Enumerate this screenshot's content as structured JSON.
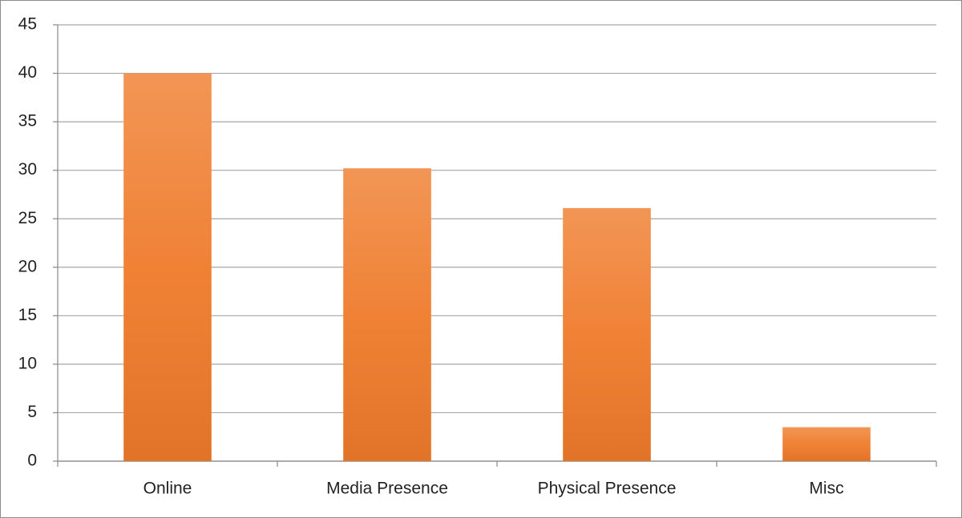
{
  "chart_data": {
    "type": "bar",
    "categories": [
      "Online",
      "Media Presence",
      "Physical Presence",
      "Misc"
    ],
    "values": [
      40,
      30.2,
      26.1,
      3.5
    ],
    "color": "#ef7b2b",
    "ylim": [
      0,
      45
    ],
    "yticks": [
      0,
      5,
      10,
      15,
      20,
      25,
      30,
      35,
      40,
      45
    ],
    "grid": true
  }
}
